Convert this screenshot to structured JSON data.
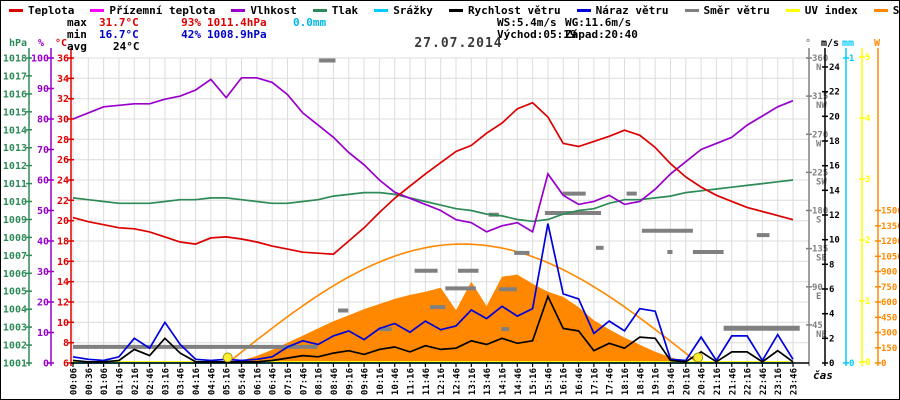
{
  "header": {
    "title": "27.07.2014"
  },
  "axis_caption": "čas",
  "legend": {
    "items": [
      {
        "label": "Teplota",
        "color": "#dd0000"
      },
      {
        "label": "Přízemní teplota",
        "color": "#ff00ff"
      },
      {
        "label": "Vlhkost",
        "color": "#9900cc"
      },
      {
        "label": "Tlak",
        "color": "#2e8b57"
      },
      {
        "label": "Srážky",
        "color": "#00ccff"
      },
      {
        "label": "Rychlost větru",
        "color": "#000000"
      },
      {
        "label": "Náraz větru",
        "color": "#0000dd"
      },
      {
        "label": "Směr větru",
        "color": "#808080"
      },
      {
        "label": "UV index",
        "color": "#ffff00"
      },
      {
        "label": "Solar",
        "color": "#ff8800"
      }
    ]
  },
  "stats": {
    "max_label": "max",
    "max_temp": "31.7°C",
    "max_hum": "93%",
    "max_press": "1011.4hPa",
    "rain": "0.0mm",
    "min_label": "min",
    "min_temp": "16.7°C",
    "min_hum": "42%",
    "min_press": "1008.9hPa",
    "avg_label": "avg",
    "avg_temp": "24°C",
    "wind_speed_max": "WS:5.4m/s",
    "wind_gust_max": "WG:11.6m/s",
    "sunrise": "Východ:05:19",
    "sunset": "Západ:20:40"
  },
  "chart_data": {
    "type": "line",
    "title": "27.07.2014",
    "x_axis_label": "čas",
    "x_labels": [
      "00:06",
      "00:36",
      "01:06",
      "01:46",
      "02:16",
      "02:46",
      "03:16",
      "03:46",
      "04:16",
      "04:46",
      "05:16",
      "05:46",
      "06:16",
      "06:46",
      "07:16",
      "07:46",
      "08:16",
      "08:46",
      "09:16",
      "09:46",
      "10:16",
      "10:46",
      "11:16",
      "11:46",
      "12:16",
      "12:46",
      "13:16",
      "13:46",
      "14:16",
      "14:46",
      "15:16",
      "15:46",
      "16:16",
      "16:46",
      "17:16",
      "17:46",
      "18:16",
      "18:46",
      "19:16",
      "19:46",
      "20:16",
      "20:46",
      "21:16",
      "21:46",
      "22:16",
      "22:46",
      "23:16",
      "23:46"
    ],
    "axes": {
      "pressure_hpa": {
        "min": 1001,
        "max": 1018,
        "step": 1,
        "unit": "hPa",
        "color": "#2e8b57"
      },
      "humidity_pct": {
        "min": 0,
        "max": 100,
        "step": 10,
        "unit": "%",
        "color": "#9900cc"
      },
      "temperature_c": {
        "min": 6,
        "max": 36,
        "step": 2,
        "unit": "°C",
        "color": "#dd0000"
      },
      "wind_dir_deg": {
        "unit": "°",
        "color": "#808080",
        "ticks": [
          [
            360,
            "N"
          ],
          [
            315,
            "NW"
          ],
          [
            270,
            "W"
          ],
          [
            225,
            "SW"
          ],
          [
            180,
            "S"
          ],
          [
            135,
            "SE"
          ],
          [
            90,
            "E"
          ],
          [
            45,
            "NE"
          ]
        ]
      },
      "wind_ms": {
        "min": 0,
        "max": 24,
        "step": 2,
        "unit": "m/s",
        "color": "#000000"
      },
      "rain_mm": {
        "min": 0,
        "max": 1,
        "step": 1,
        "unit": "mm",
        "color": "#00ccff"
      },
      "uv": {
        "min": 0,
        "max": 5,
        "step": 1,
        "unit": "",
        "color": "#ffff00"
      },
      "solar_w": {
        "min": 0,
        "max": 1500,
        "step": 150,
        "unit": "W",
        "color": "#ff8800"
      }
    },
    "series": [
      {
        "id": "solar",
        "name": "Solar",
        "axis": "solar_w",
        "color": "#ff8800",
        "fill": true,
        "values": [
          0,
          0,
          0,
          0,
          0,
          0,
          0,
          0,
          0,
          0,
          5,
          25,
          70,
          130,
          200,
          270,
          340,
          410,
          470,
          530,
          580,
          630,
          670,
          700,
          740,
          520,
          800,
          560,
          850,
          870,
          780,
          700,
          650,
          550,
          420,
          330,
          250,
          180,
          110,
          55,
          20,
          0,
          0,
          0,
          0,
          0,
          0,
          0
        ]
      },
      {
        "id": "uv-index",
        "name": "UV index",
        "axis": "uv",
        "color": "#ffff00",
        "values": [
          0,
          0,
          0,
          0,
          0,
          0,
          0,
          0,
          0,
          0,
          0,
          0,
          0,
          0,
          0,
          0,
          0,
          0,
          0,
          0,
          0,
          0,
          0,
          0,
          0,
          0,
          0,
          0,
          0,
          0,
          0,
          0,
          0,
          0,
          0,
          0,
          0,
          0,
          0,
          0,
          0,
          0,
          0,
          0,
          0,
          0,
          0,
          0
        ]
      },
      {
        "id": "rain",
        "name": "Srážky",
        "axis": "rain_mm",
        "color": "#00ccff",
        "values": [
          0,
          0,
          0,
          0,
          0,
          0,
          0,
          0,
          0,
          0,
          0,
          0,
          0,
          0,
          0,
          0,
          0,
          0,
          0,
          0,
          0,
          0,
          0,
          0,
          0,
          0,
          0,
          0,
          0,
          0,
          0,
          0,
          0,
          0,
          0,
          0,
          0,
          0,
          0,
          0,
          0,
          0,
          0,
          0,
          0,
          0,
          0,
          0
        ]
      },
      {
        "id": "pressure",
        "name": "Tlak",
        "axis": "pressure_hpa",
        "color": "#2e8b57",
        "values": [
          1010.2,
          1010.1,
          1010.0,
          1009.9,
          1009.9,
          1009.9,
          1010.0,
          1010.1,
          1010.1,
          1010.2,
          1010.2,
          1010.1,
          1010.0,
          1009.9,
          1009.9,
          1010.0,
          1010.1,
          1010.3,
          1010.4,
          1010.5,
          1010.5,
          1010.4,
          1010.2,
          1010.0,
          1009.8,
          1009.6,
          1009.5,
          1009.3,
          1009.2,
          1009.0,
          1008.9,
          1009.0,
          1009.3,
          1009.5,
          1009.6,
          1009.9,
          1010.1,
          1010.1,
          1010.2,
          1010.3,
          1010.5,
          1010.6,
          1010.7,
          1010.8,
          1010.9,
          1011.0,
          1011.1,
          1011.2
        ]
      },
      {
        "id": "humidity",
        "name": "Vlhkost",
        "axis": "humidity_pct",
        "color": "#9900cc",
        "values": [
          80,
          82,
          84,
          84.5,
          85,
          85,
          86.5,
          87.5,
          89.5,
          93,
          87,
          93.5,
          93.5,
          92,
          88,
          82,
          78,
          74,
          69,
          65,
          60,
          56,
          54,
          52,
          50,
          47,
          46,
          43,
          45,
          46,
          43,
          62,
          55,
          52,
          53,
          55,
          52,
          53,
          57,
          62,
          66,
          70,
          72,
          74,
          78,
          81,
          84,
          86
        ]
      },
      {
        "id": "ground-temperature",
        "name": "Přízemní teplota",
        "axis": "temperature_c",
        "color": "#ff00ff",
        "values": []
      },
      {
        "id": "temperature",
        "name": "Teplota",
        "axis": "temperature_c",
        "color": "#dd0000",
        "values": [
          20.3,
          19.9,
          19.6,
          19.3,
          19.2,
          18.9,
          18.4,
          17.9,
          17.7,
          18.3,
          18.4,
          18.2,
          17.9,
          17.5,
          17.2,
          16.9,
          16.8,
          16.7,
          18.0,
          19.3,
          20.8,
          22.2,
          23.4,
          24.6,
          25.7,
          26.8,
          27.4,
          28.6,
          29.6,
          31.0,
          31.6,
          30.2,
          27.6,
          27.3,
          27.8,
          28.3,
          28.9,
          28.4,
          27.2,
          25.6,
          24.3,
          23.3,
          22.5,
          21.9,
          21.3,
          20.9,
          20.5,
          20.1
        ]
      },
      {
        "id": "wind-gust",
        "name": "Náraz větru",
        "axis": "wind_ms",
        "color": "#0000dd",
        "values": [
          0.5,
          0.3,
          0.2,
          0.5,
          2.0,
          1.2,
          3.3,
          1.5,
          0.3,
          0.2,
          0.3,
          0.2,
          0.3,
          0.5,
          1.3,
          1.8,
          1.5,
          2.2,
          2.6,
          1.9,
          2.8,
          3.2,
          2.5,
          3.4,
          2.7,
          3.0,
          4.3,
          3.6,
          4.6,
          3.8,
          4.4,
          11.3,
          5.6,
          5.2,
          2.4,
          3.4,
          2.6,
          4.4,
          4.2,
          0.3,
          0.2,
          2.1,
          0.2,
          2.2,
          2.2,
          0.2,
          2.3,
          0.3
        ]
      },
      {
        "id": "wind-speed",
        "name": "Rychlost větru",
        "axis": "wind_ms",
        "color": "#000000",
        "values": [
          0.2,
          0.1,
          0.1,
          0.2,
          1.1,
          0.6,
          2.0,
          0.8,
          0.1,
          0.1,
          0.1,
          0.1,
          0.1,
          0.2,
          0.4,
          0.6,
          0.5,
          0.8,
          1.0,
          0.7,
          1.1,
          1.3,
          0.9,
          1.4,
          1.1,
          1.2,
          1.8,
          1.5,
          2.0,
          1.6,
          1.8,
          5.4,
          2.8,
          2.6,
          1.0,
          1.6,
          1.2,
          2.1,
          2.0,
          0.2,
          0.1,
          0.9,
          0.1,
          0.9,
          0.9,
          0.1,
          1.0,
          0.1
        ]
      }
    ],
    "solar_max_curve": {
      "start": "05:19",
      "end": "20:40",
      "peak_w": 1170
    },
    "sun_markers": [
      "05:19",
      "20:40"
    ],
    "wind_direction_segments": [
      {
        "from": "00:06",
        "to": "08:15",
        "deg": 19,
        "thick": 4
      },
      {
        "from": "08:18",
        "to": "08:50",
        "deg": 357,
        "thick": 4
      },
      {
        "from": "08:55",
        "to": "09:15",
        "deg": 62,
        "thick": 4
      },
      {
        "from": "10:15",
        "to": "10:40",
        "deg": 40,
        "thick": 4
      },
      {
        "from": "11:25",
        "to": "12:10",
        "deg": 109,
        "thick": 4
      },
      {
        "from": "11:55",
        "to": "12:25",
        "deg": 66,
        "thick": 4
      },
      {
        "from": "12:25",
        "to": "13:25",
        "deg": 88,
        "thick": 4
      },
      {
        "from": "12:50",
        "to": "13:30",
        "deg": 109,
        "thick": 4
      },
      {
        "from": "13:50",
        "to": "14:10",
        "deg": 175,
        "thick": 4
      },
      {
        "from": "14:10",
        "to": "14:45",
        "deg": 87,
        "thick": 4
      },
      {
        "from": "14:15",
        "to": "14:30",
        "deg": 40,
        "thick": 4
      },
      {
        "from": "14:40",
        "to": "15:10",
        "deg": 130,
        "thick": 4
      },
      {
        "from": "15:40",
        "to": "17:30",
        "deg": 177,
        "thick": 4
      },
      {
        "from": "16:15",
        "to": "17:00",
        "deg": 200,
        "thick": 4
      },
      {
        "from": "17:20",
        "to": "17:35",
        "deg": 136,
        "thick": 4
      },
      {
        "from": "18:20",
        "to": "18:40",
        "deg": 200,
        "thick": 4
      },
      {
        "from": "18:50",
        "to": "20:30",
        "deg": 156,
        "thick": 4
      },
      {
        "from": "19:40",
        "to": "19:50",
        "deg": 131,
        "thick": 4
      },
      {
        "from": "20:30",
        "to": "21:30",
        "deg": 131,
        "thick": 4
      },
      {
        "from": "21:30",
        "to": "23:59",
        "deg": 41,
        "thick": 5
      },
      {
        "from": "22:35",
        "to": "23:00",
        "deg": 151,
        "thick": 4
      }
    ]
  }
}
